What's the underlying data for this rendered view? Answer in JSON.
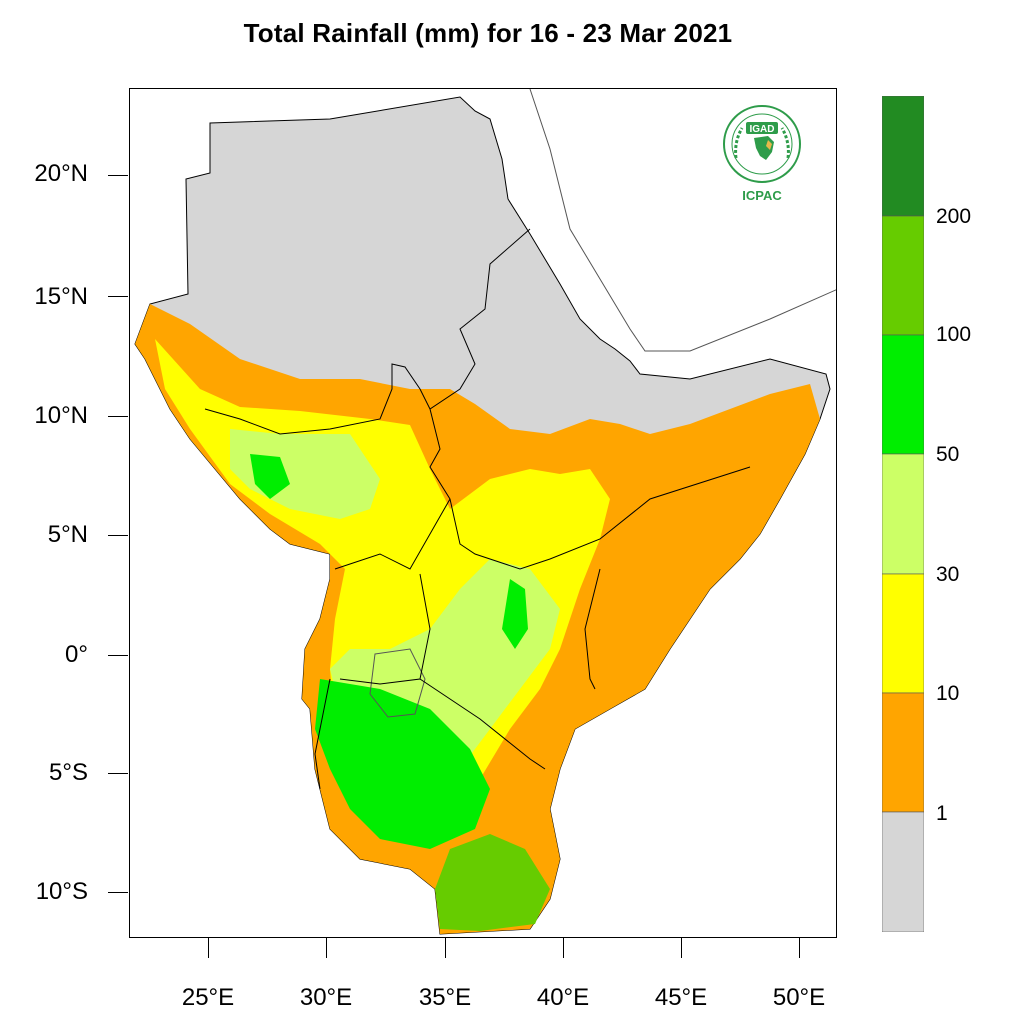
{
  "title": "Total Rainfall (mm) for 16 - 23 Mar 2021",
  "axes": {
    "lat_labels": [
      "20°N",
      "15°N",
      "10°N",
      "5°N",
      "0°",
      "5°S",
      "10°S"
    ],
    "lon_labels": [
      "25°E",
      "30°E",
      "35°E",
      "40°E",
      "45°E",
      "50°E"
    ]
  },
  "legend": {
    "labels": [
      "1",
      "10",
      "30",
      "50",
      "100",
      "200"
    ],
    "colors": [
      "#d6d6d6",
      "#ffa500",
      "#ffff00",
      "#ccff66",
      "#00ee00",
      "#66cc00",
      "#228b22"
    ]
  },
  "logo": {
    "top_text": "IGAD",
    "bottom_text": "ICPAC"
  },
  "colors": {
    "dry": "#d6d6d6",
    "border": "#000000",
    "coast": "#555555"
  }
}
